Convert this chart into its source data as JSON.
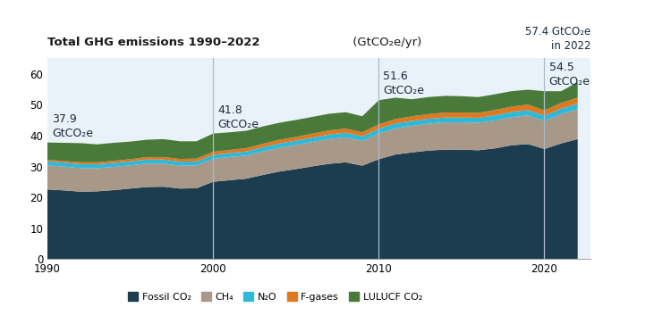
{
  "title_bold": "Total GHG emissions 1990–2022",
  "title_normal": " (GtCO₂e/yr)",
  "years": [
    1990,
    1991,
    1992,
    1993,
    1994,
    1995,
    1996,
    1997,
    1998,
    1999,
    2000,
    2001,
    2002,
    2003,
    2004,
    2005,
    2006,
    2007,
    2008,
    2009,
    2010,
    2011,
    2012,
    2013,
    2014,
    2015,
    2016,
    2017,
    2018,
    2019,
    2020,
    2021,
    2022
  ],
  "fossil_co2": [
    22.7,
    22.4,
    22.0,
    22.1,
    22.5,
    23.0,
    23.5,
    23.6,
    23.0,
    23.1,
    25.2,
    25.7,
    26.2,
    27.4,
    28.5,
    29.3,
    30.2,
    31.0,
    31.5,
    30.4,
    32.5,
    34.0,
    34.7,
    35.3,
    35.6,
    35.6,
    35.4,
    36.0,
    37.0,
    37.4,
    35.8,
    37.6,
    39.0
  ],
  "ch4": [
    7.8,
    7.7,
    7.6,
    7.5,
    7.5,
    7.5,
    7.6,
    7.5,
    7.4,
    7.4,
    7.4,
    7.5,
    7.5,
    7.6,
    7.7,
    7.8,
    7.9,
    8.0,
    8.1,
    8.0,
    8.3,
    8.5,
    8.6,
    8.7,
    8.8,
    8.8,
    8.9,
    9.0,
    9.1,
    9.3,
    9.1,
    9.5,
    9.7
  ],
  "n2o": [
    1.3,
    1.3,
    1.3,
    1.3,
    1.3,
    1.3,
    1.3,
    1.3,
    1.3,
    1.3,
    1.3,
    1.3,
    1.3,
    1.4,
    1.4,
    1.4,
    1.4,
    1.5,
    1.5,
    1.5,
    1.6,
    1.6,
    1.6,
    1.6,
    1.6,
    1.6,
    1.6,
    1.7,
    1.7,
    1.7,
    1.7,
    1.8,
    1.8
  ],
  "fgases": [
    0.5,
    0.5,
    0.6,
    0.6,
    0.7,
    0.7,
    0.8,
    0.8,
    0.9,
    0.9,
    1.0,
    1.0,
    1.1,
    1.1,
    1.2,
    1.2,
    1.3,
    1.3,
    1.3,
    1.3,
    1.4,
    1.4,
    1.5,
    1.5,
    1.6,
    1.6,
    1.6,
    1.7,
    1.7,
    1.8,
    1.7,
    1.8,
    1.9
  ],
  "lulucf_co2": [
    5.6,
    5.9,
    6.2,
    5.8,
    5.8,
    5.7,
    5.6,
    5.8,
    5.7,
    5.6,
    5.9,
    5.7,
    5.6,
    5.6,
    5.5,
    5.5,
    5.4,
    5.4,
    5.3,
    5.2,
    7.8,
    6.9,
    5.5,
    5.5,
    5.4,
    5.3,
    5.1,
    5.1,
    5.0,
    4.8,
    6.2,
    3.8,
    5.0
  ],
  "colors": {
    "fossil_co2": "#1c3d4f",
    "ch4": "#a89888",
    "n2o": "#30b8d8",
    "fgases": "#e07820",
    "lulucf_co2": "#4a7a3a"
  },
  "labels": {
    "fossil_co2": "Fossil CO₂",
    "ch4": "CH₄",
    "n2o": "N₂O",
    "fgases": "F-gases",
    "lulucf_co2": "LULUCF CO₂"
  },
  "vlines": [
    2000,
    2010,
    2020
  ],
  "ylim": [
    0,
    65
  ],
  "yticks": [
    0,
    10,
    20,
    30,
    40,
    50,
    60
  ],
  "xlim": [
    1990,
    2022.8
  ],
  "figure_bg": "#ffffff",
  "plot_bg": "#e8f2f8",
  "annotation_color": "#1a2a3a"
}
